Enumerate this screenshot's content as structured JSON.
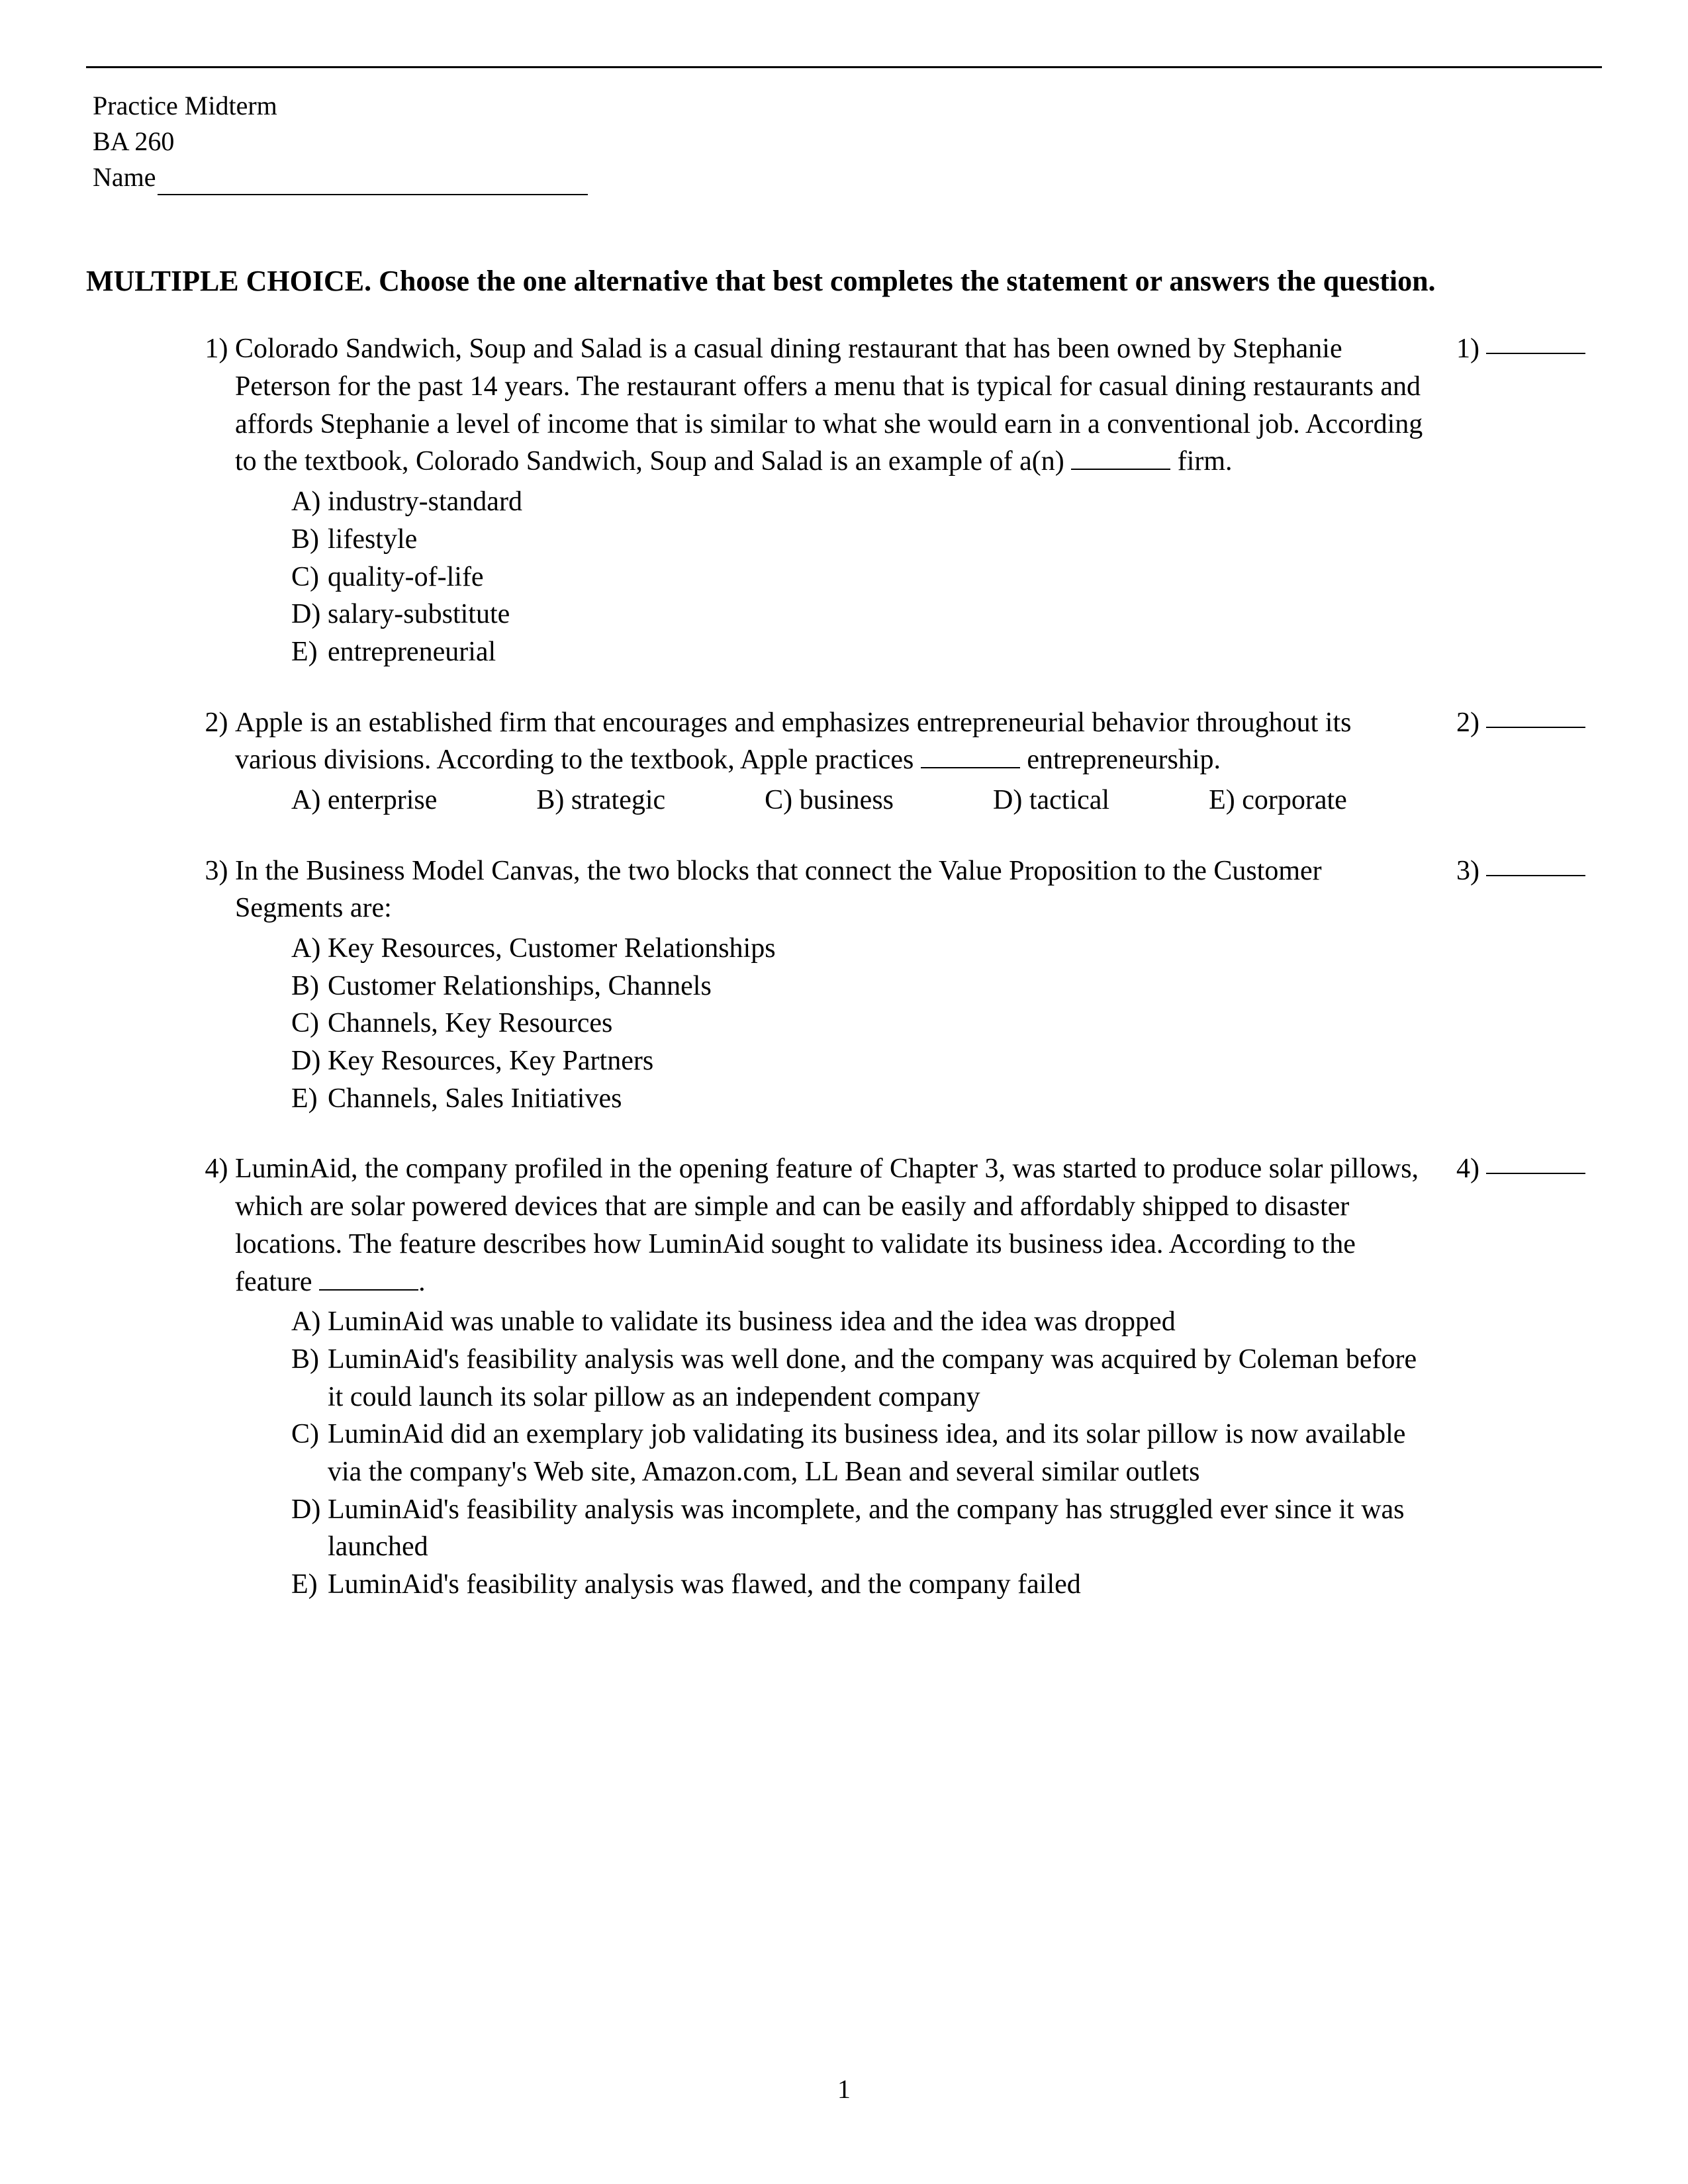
{
  "header": {
    "line1": "Practice Midterm",
    "line2": "BA 260",
    "nameLabel": "Name"
  },
  "instructions": "MULTIPLE CHOICE.  Choose the one alternative that best completes the statement or answers the question.",
  "questions": [
    {
      "num": "1)",
      "stem_pre": "Colorado Sandwich, Soup and Salad is a casual dining restaurant that has been owned by Stephanie Peterson for the past 14 years. The restaurant offers a menu that is typical for casual dining restaurants and affords Stephanie a level of income that is similar to what she would earn in a conventional job. According to the textbook, Colorado Sandwich, Soup and Salad is an example of a(n) ",
      "stem_post": " firm.",
      "layout": "stacked",
      "choices": [
        {
          "letter": "A)",
          "text": "industry-standard"
        },
        {
          "letter": "B)",
          "text": "lifestyle"
        },
        {
          "letter": "C)",
          "text": "quality-of-life"
        },
        {
          "letter": "D)",
          "text": "salary-substitute"
        },
        {
          "letter": "E)",
          "text": "entrepreneurial"
        }
      ],
      "answerNum": "1)"
    },
    {
      "num": "2)",
      "stem_pre": "Apple is an established firm that encourages and emphasizes entrepreneurial behavior throughout its various divisions. According to the textbook, Apple practices ",
      "stem_post": " entrepreneurship.",
      "layout": "inline",
      "choices": [
        {
          "letter": "A)",
          "text": "enterprise"
        },
        {
          "letter": "B)",
          "text": "strategic"
        },
        {
          "letter": "C)",
          "text": "business"
        },
        {
          "letter": "D)",
          "text": "tactical"
        },
        {
          "letter": "E)",
          "text": "corporate"
        }
      ],
      "answerNum": "2)"
    },
    {
      "num": "3)",
      "stem_pre": "In the Business Model Canvas, the two blocks that connect the Value Proposition to the Customer Segments are:",
      "stem_post": "",
      "layout": "stacked",
      "choices": [
        {
          "letter": "A)",
          "text": "Key Resources, Customer Relationships"
        },
        {
          "letter": "B)",
          "text": "Customer Relationships, Channels"
        },
        {
          "letter": "C)",
          "text": "Channels, Key Resources"
        },
        {
          "letter": "D)",
          "text": "Key Resources, Key Partners"
        },
        {
          "letter": "E)",
          "text": "Channels, Sales Initiatives"
        }
      ],
      "answerNum": "3)"
    },
    {
      "num": "4)",
      "stem_pre": "LuminAid, the company profiled in the opening feature of Chapter 3, was started to produce solar pillows, which are solar powered devices that are simple and can be easily and affordably shipped to disaster locations. The feature describes how LuminAid sought to validate its business idea. According to the feature ",
      "stem_post": ".",
      "layout": "stacked",
      "choices": [
        {
          "letter": "A)",
          "text": "LuminAid was unable to validate its business idea and the idea was dropped"
        },
        {
          "letter": "B)",
          "text": "LuminAid's feasibility analysis was well done, and the company was acquired by Coleman before it could launch its solar pillow as an independent company"
        },
        {
          "letter": "C)",
          "text": "LuminAid did an exemplary job validating its business idea, and its solar pillow is now available via the company's Web site, Amazon.com, LL Bean and several similar outlets"
        },
        {
          "letter": "D)",
          "text": "LuminAid's feasibility analysis was incomplete, and the company has struggled ever since it was launched"
        },
        {
          "letter": "E)",
          "text": "LuminAid's feasibility analysis was flawed, and the company failed"
        }
      ],
      "answerNum": "4)"
    }
  ],
  "pageNumber": "1"
}
